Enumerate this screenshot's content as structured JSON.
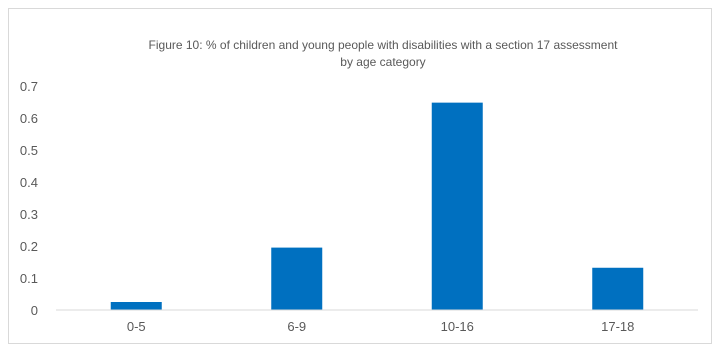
{
  "chart_data": {
    "type": "bar",
    "title_lines": [
      "Figure 10: % of children and young people with disabilities with a section 17 assessment",
      "by age category"
    ],
    "categories": [
      "0-5",
      "6-9",
      "10-16",
      "17-18"
    ],
    "values": [
      0.025,
      0.195,
      0.648,
      0.132
    ],
    "ylim": [
      0,
      0.7
    ],
    "yticks": [
      "0",
      "0.1",
      "0.2",
      "0.3",
      "0.4",
      "0.5",
      "0.6",
      "0.7"
    ],
    "grid": false,
    "legend": "none",
    "bar_color": "#0070C0",
    "axis_color": "#d9d9d9",
    "text_color": "#595959"
  }
}
